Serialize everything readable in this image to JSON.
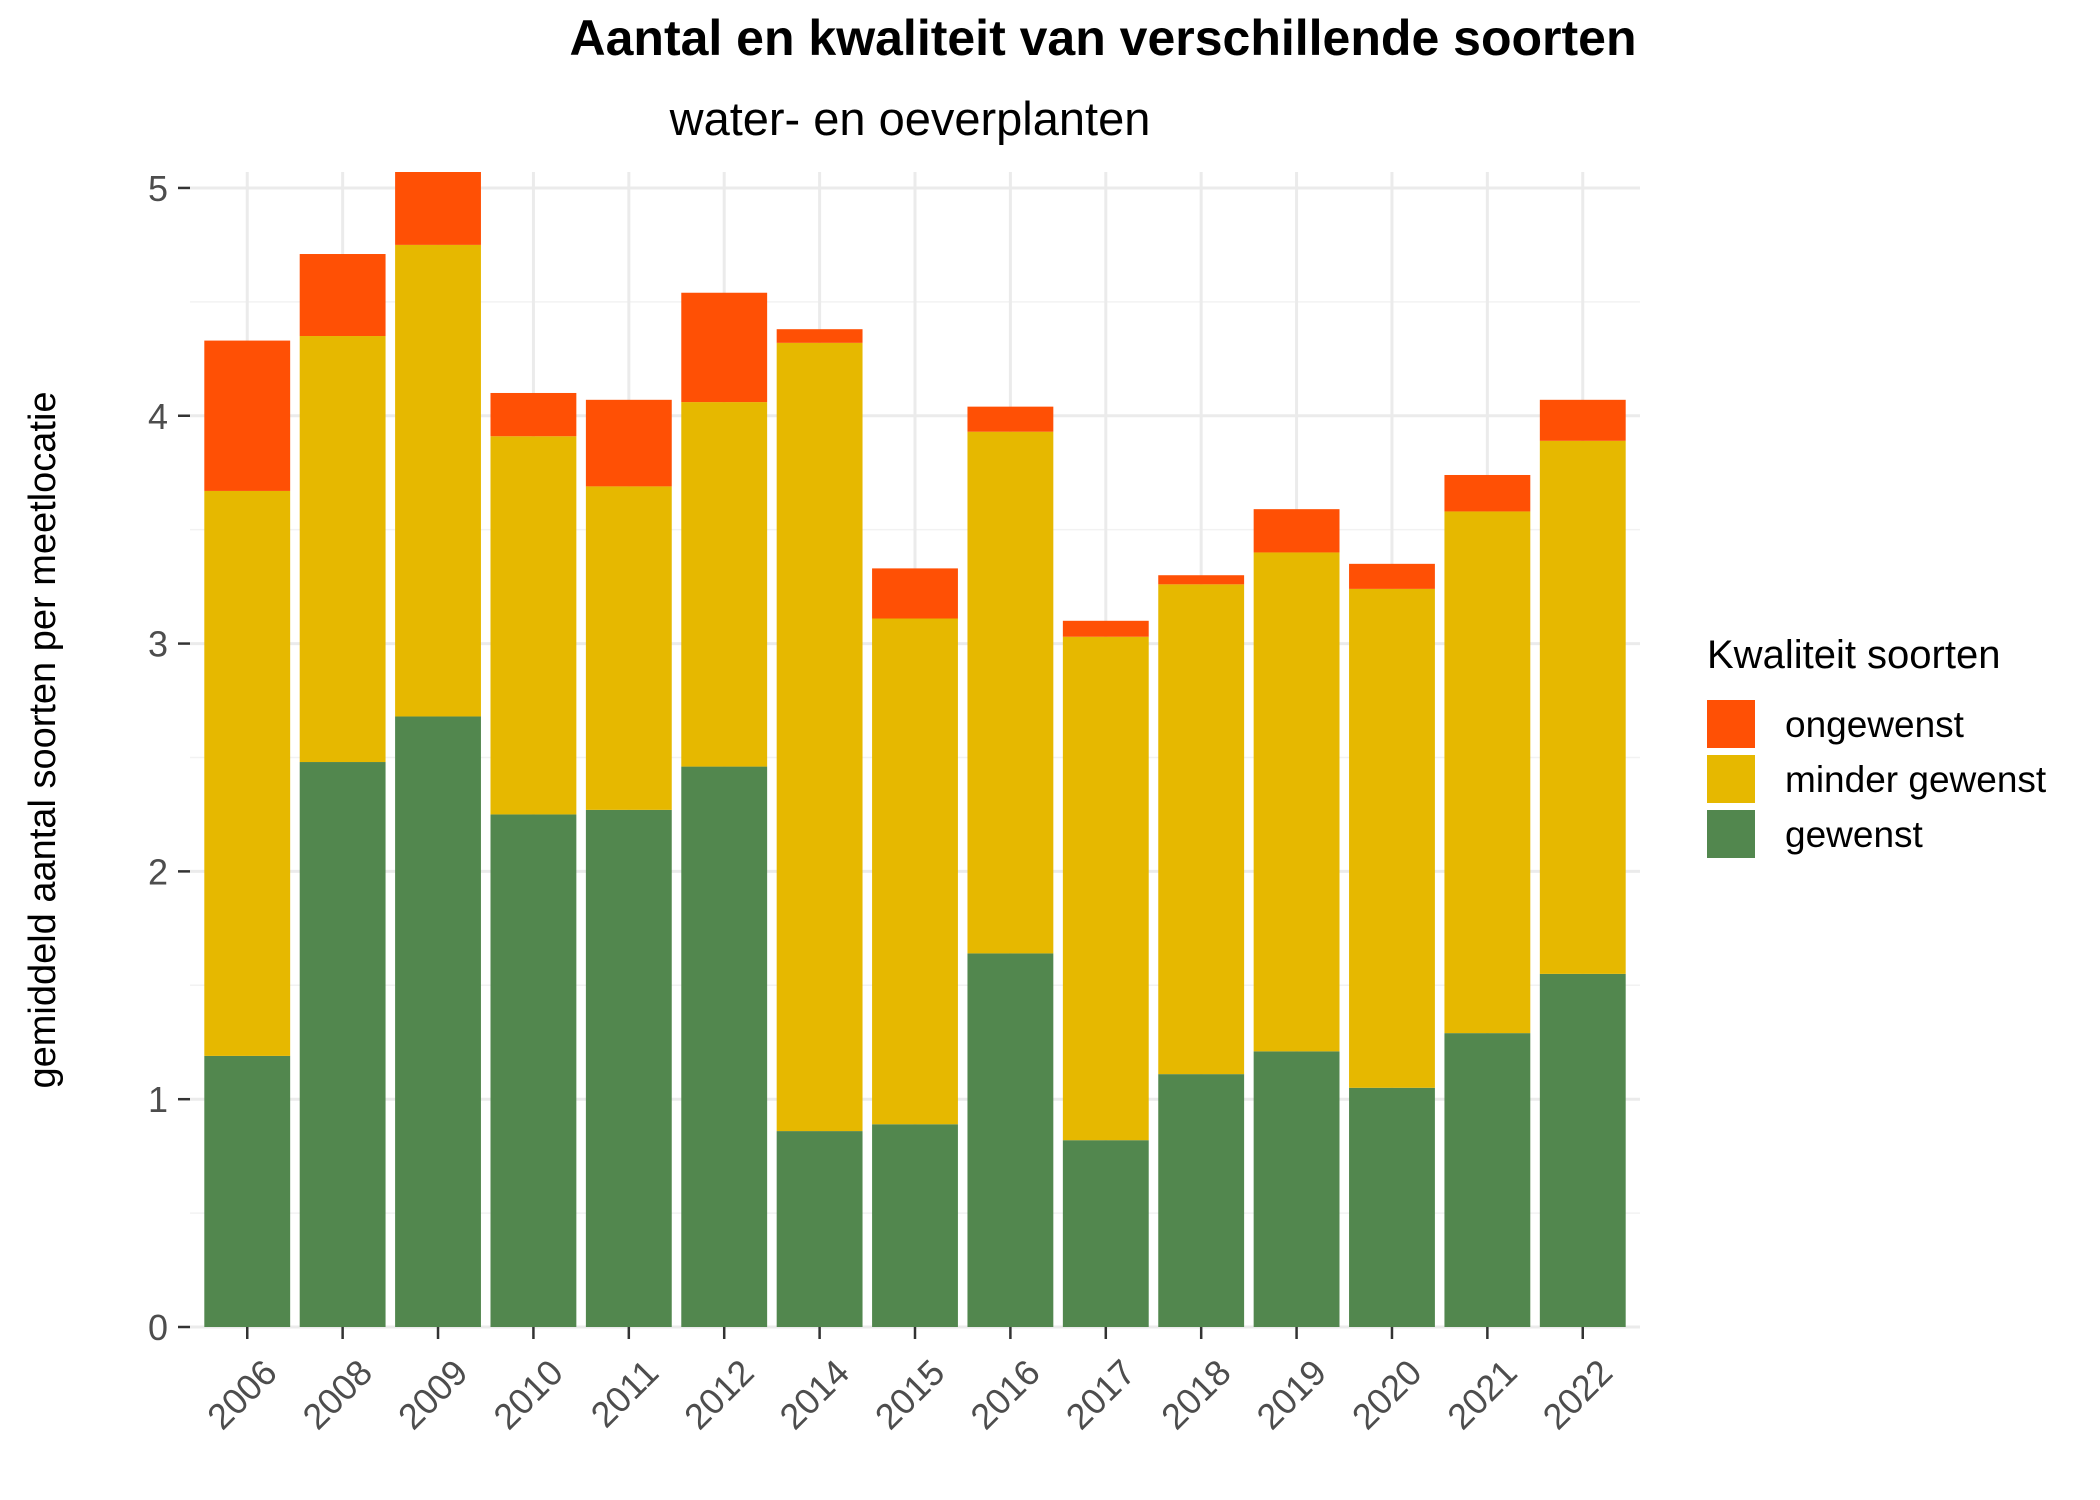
{
  "chart_data": {
    "type": "bar",
    "stacked": true,
    "title": "Aantal en kwaliteit van verschillende soorten",
    "subtitle": "water- en oeverplanten",
    "xlabel": "",
    "ylabel": "gemiddeld aantal soorten per meetlocatie",
    "ylim": [
      0,
      5.07
    ],
    "yticks": [
      0,
      1,
      2,
      3,
      4,
      5
    ],
    "grid": true,
    "categories": [
      "2006",
      "2008",
      "2009",
      "2010",
      "2011",
      "2012",
      "2014",
      "2015",
      "2016",
      "2017",
      "2018",
      "2019",
      "2020",
      "2021",
      "2022"
    ],
    "series": [
      {
        "name": "gewenst",
        "color": "#52874E",
        "values": [
          1.19,
          2.48,
          2.68,
          2.25,
          2.27,
          2.46,
          0.86,
          0.89,
          1.64,
          0.82,
          1.11,
          1.21,
          1.05,
          1.29,
          1.55
        ]
      },
      {
        "name": "minder gewenst",
        "color": "#E6B800",
        "values": [
          2.48,
          1.87,
          2.07,
          1.66,
          1.42,
          1.6,
          3.46,
          2.22,
          2.29,
          2.21,
          2.15,
          2.19,
          2.19,
          2.29,
          2.34
        ]
      },
      {
        "name": "ongewenst",
        "color": "#FF5005",
        "values": [
          0.66,
          0.36,
          0.32,
          0.19,
          0.38,
          0.48,
          0.06,
          0.22,
          0.11,
          0.07,
          0.04,
          0.19,
          0.11,
          0.16,
          0.18
        ]
      }
    ],
    "legend": {
      "title": "Kwaliteit soorten",
      "position": "right",
      "order": [
        "ongewenst",
        "minder gewenst",
        "gewenst"
      ]
    }
  }
}
